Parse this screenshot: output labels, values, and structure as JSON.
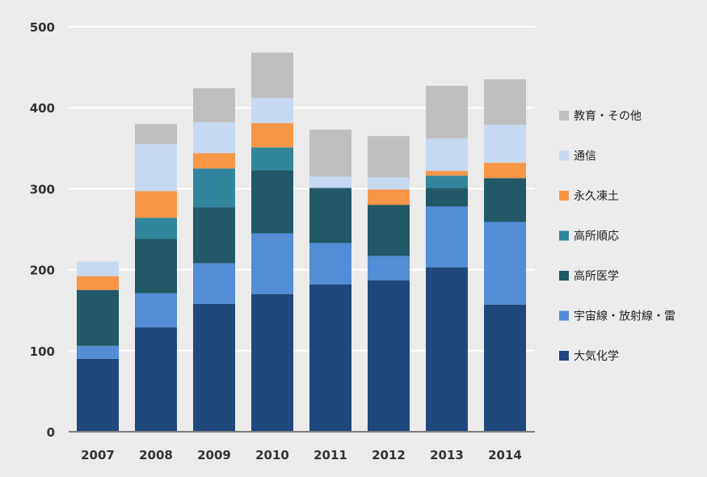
{
  "chart_data": {
    "type": "bar",
    "stacked": true,
    "title": "",
    "xlabel": "",
    "ylabel": "",
    "ylim": [
      0,
      500
    ],
    "yticks": [
      0,
      100,
      200,
      300,
      400,
      500
    ],
    "grid": true,
    "legend_position": "right",
    "categories": [
      "2007",
      "2008",
      "2009",
      "2010",
      "2011",
      "2012",
      "2013",
      "2014"
    ],
    "series": [
      {
        "name": "大気化学",
        "color": "#1f497d",
        "values": [
          90,
          129,
          158,
          170,
          182,
          187,
          203,
          157
        ]
      },
      {
        "name": "宇宙線・放射線・雷",
        "color": "#538dd5",
        "values": [
          16,
          42,
          50,
          75,
          51,
          30,
          75,
          102
        ]
      },
      {
        "name": "高所医学",
        "color": "#215968",
        "values": [
          69,
          67,
          69,
          78,
          68,
          63,
          23,
          54
        ]
      },
      {
        "name": "高所順応",
        "color": "#31859c",
        "values": [
          0,
          26,
          48,
          28,
          0,
          0,
          15,
          0
        ]
      },
      {
        "name": "永久凍土",
        "color": "#f79646",
        "values": [
          17,
          33,
          19,
          30,
          0,
          19,
          6,
          19
        ]
      },
      {
        "name": "通信",
        "color": "#c6d9f0",
        "values": [
          18,
          58,
          38,
          31,
          14,
          15,
          40,
          47
        ]
      },
      {
        "name": "教育・その他",
        "color": "#bfbfbf",
        "values": [
          0,
          25,
          42,
          56,
          58,
          51,
          65,
          56
        ]
      }
    ]
  }
}
